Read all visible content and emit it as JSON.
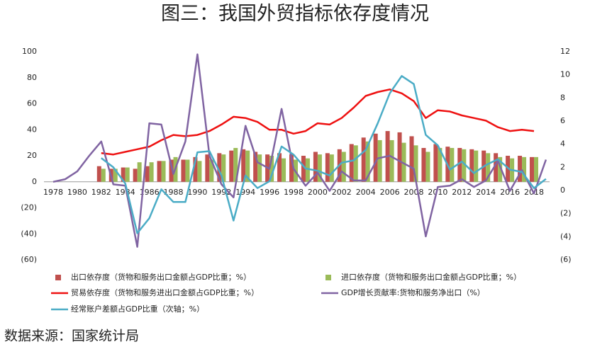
{
  "chart_data": {
    "type": "bar-line",
    "title": "图三：我国外贸指标依存度情况",
    "source": "数据来源：国家统计局",
    "categories": [
      "1978",
      null,
      "1980",
      null,
      "1982",
      null,
      "1984",
      null,
      "1986",
      null,
      "1988",
      null,
      "1990",
      null,
      "1992",
      null,
      "1994",
      null,
      "1996",
      null,
      "1998",
      null,
      "2000",
      null,
      "2002",
      null,
      "2004",
      null,
      "2006",
      null,
      "2008",
      null,
      "2010",
      null,
      "2012",
      null,
      "2014",
      null,
      "2016",
      null,
      "2018",
      null
    ],
    "ylim": [
      -60,
      100
    ],
    "yticks": [
      {
        "value": -60,
        "label": "(60)"
      },
      {
        "value": -40,
        "label": "(40)"
      },
      {
        "value": -20,
        "label": "(20)"
      },
      0,
      20,
      40,
      60,
      80,
      100
    ],
    "y2lim": [
      -6,
      12
    ],
    "y2ticks": [
      {
        "value": -6,
        "label": "(6)"
      },
      {
        "value": -4,
        "label": "(4)"
      },
      {
        "value": -2,
        "label": "(2)"
      },
      0,
      2,
      4,
      6,
      8,
      10,
      12
    ],
    "series": [
      {
        "name": "出口依存度（货物和服务出口金额占GDP比重；%）",
        "type": "bar",
        "color": "#c0504d",
        "values": [
          null,
          null,
          null,
          null,
          12,
          10,
          11,
          10,
          12,
          16,
          17,
          17,
          19,
          21,
          22,
          24,
          25,
          23,
          21,
          22,
          21,
          20,
          23,
          22,
          25,
          29,
          34,
          37,
          39,
          38,
          35,
          26,
          29,
          27,
          26,
          25,
          24,
          22,
          20,
          20,
          19,
          null
        ]
      },
      {
        "name": "进口依存度（货物和服务出口金额占GDP比重；%）",
        "type": "bar",
        "color": "#9bbb59",
        "values": [
          null,
          null,
          null,
          null,
          10,
          10,
          11,
          15,
          15,
          16,
          19,
          17,
          16,
          17,
          21,
          26,
          24,
          21,
          20,
          18,
          17,
          18,
          21,
          21,
          23,
          28,
          31,
          32,
          32,
          30,
          28,
          23,
          26,
          26,
          25,
          24,
          22,
          19,
          18,
          19,
          19,
          null
        ]
      },
      {
        "name": "贸易依存度（货物和服务进出口金额占GDP比重；%）",
        "type": "line",
        "color": "#ee1111",
        "values": [
          null,
          null,
          null,
          null,
          22,
          21,
          23,
          25,
          27,
          32,
          36,
          35,
          36,
          39,
          44,
          50,
          49,
          46,
          40,
          40,
          37,
          39,
          45,
          44,
          49,
          57,
          66,
          69,
          71,
          68,
          62,
          49,
          55,
          54,
          51,
          49,
          47,
          42,
          39,
          40,
          39,
          null
        ]
      },
      {
        "name": "GDP增长贡献率:货物和服务净出口（%）",
        "type": "line",
        "color": "#8064a2",
        "values": [
          0,
          2,
          8,
          20,
          31,
          -2,
          -3,
          -50,
          45,
          44,
          6,
          31,
          98,
          20,
          -2,
          -12,
          43,
          15,
          10,
          56,
          10,
          -3,
          7,
          -7,
          8,
          1,
          1,
          18,
          20,
          15,
          10,
          -42,
          -4,
          -3,
          2,
          -4,
          1,
          16,
          -7,
          9,
          -9,
          17
        ]
      },
      {
        "name": "经常账户差额占GDP比重（次轴；%）",
        "type": "line",
        "axis": "y2",
        "color": "#4bacc6",
        "values": [
          null,
          null,
          null,
          null,
          2.8,
          2.0,
          0.6,
          -3.7,
          -2.4,
          0.1,
          -1.0,
          -1.0,
          3.3,
          3.4,
          1.3,
          -2.6,
          1.3,
          0.2,
          0.8,
          3.8,
          3.1,
          1.9,
          1.7,
          1.3,
          2.4,
          2.6,
          3.5,
          5.8,
          8.4,
          9.9,
          9.2,
          4.8,
          3.9,
          1.8,
          2.5,
          1.5,
          2.2,
          2.7,
          1.8,
          1.6,
          0.2,
          1.0
        ]
      }
    ]
  }
}
